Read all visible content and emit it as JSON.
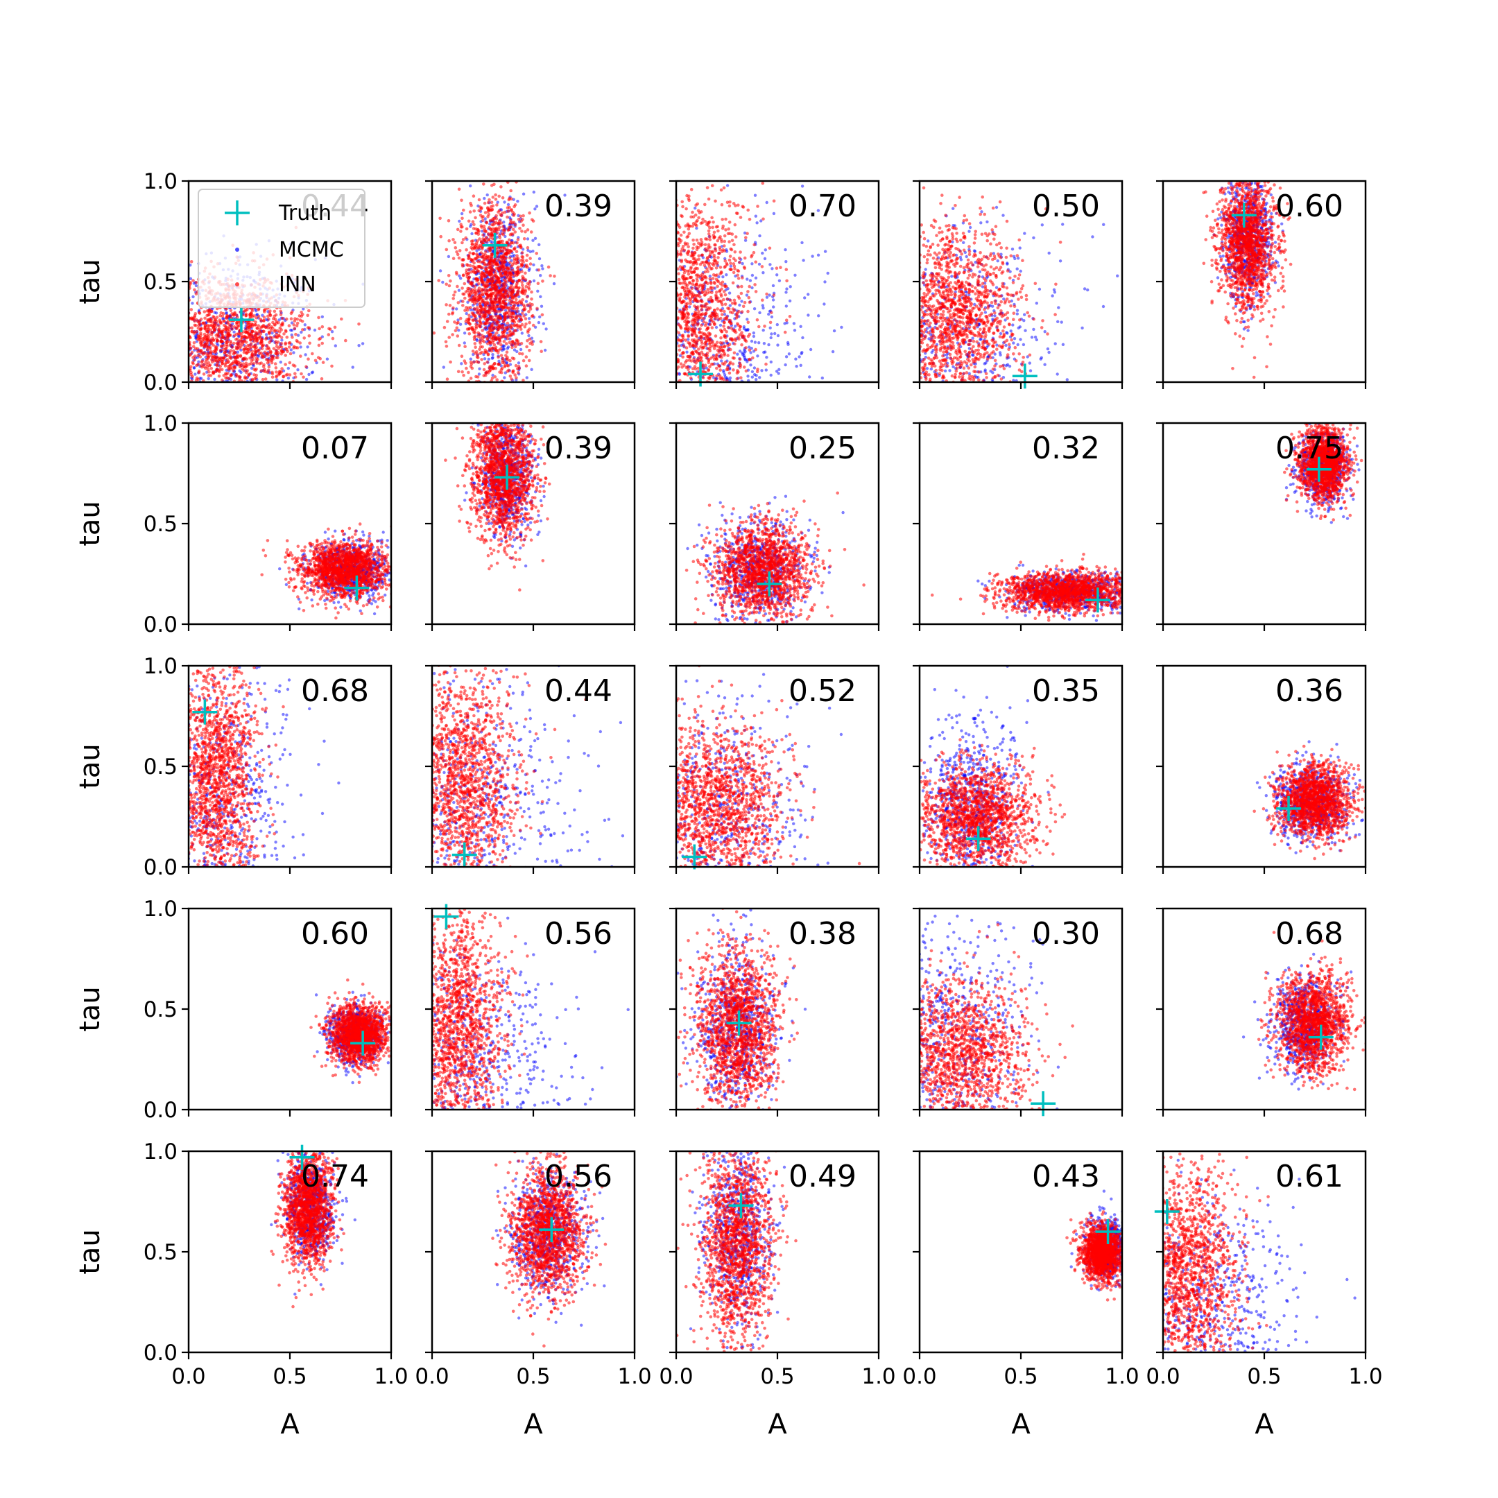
{
  "chart_data": {
    "type": "scatter",
    "layout": "5x5 grid of subplots",
    "xlabel": "A",
    "ylabel": "tau",
    "xlim": [
      0.0,
      1.0
    ],
    "ylim": [
      0.0,
      1.0
    ],
    "xticks": [
      "0.0",
      "0.5",
      "1.0"
    ],
    "yticks": [
      "0.0",
      "0.5",
      "1.0"
    ],
    "grid": false,
    "legend": {
      "placement": "upper-left (first subplot)",
      "entries": [
        {
          "label": "Truth",
          "marker": "+",
          "color": "#00bfbf"
        },
        {
          "label": "MCMC",
          "marker": "dot",
          "color": "#0000ff"
        },
        {
          "label": "INN",
          "marker": "dot",
          "color": "#ff0000"
        }
      ]
    },
    "series_colors": {
      "Truth": "#00bfbf",
      "MCMC": "#0000ff",
      "INN": "#ff0000"
    },
    "panels": [
      {
        "score": "0.44",
        "truth": [
          0.26,
          0.31
        ],
        "inn": {
          "cx": 0.2,
          "cy": 0.22,
          "sx": 0.2,
          "sy": 0.16
        },
        "mcmc": {
          "cx": 0.2,
          "cy": 0.22,
          "sx": 0.22,
          "sy": 0.2
        }
      },
      {
        "score": "0.39",
        "truth": [
          0.31,
          0.68
        ],
        "inn": {
          "cx": 0.31,
          "cy": 0.45,
          "sx": 0.09,
          "sy": 0.22
        },
        "mcmc": {
          "cx": 0.33,
          "cy": 0.45,
          "sx": 0.09,
          "sy": 0.22
        }
      },
      {
        "score": "0.70",
        "truth": [
          0.12,
          0.04
        ],
        "inn": {
          "cx": 0.1,
          "cy": 0.35,
          "sx": 0.14,
          "sy": 0.3
        },
        "mcmc": {
          "cx": 0.2,
          "cy": 0.2,
          "sx": 0.25,
          "sy": 0.3
        }
      },
      {
        "score": "0.50",
        "truth": [
          0.52,
          0.03
        ],
        "inn": {
          "cx": 0.18,
          "cy": 0.32,
          "sx": 0.16,
          "sy": 0.22
        },
        "mcmc": {
          "cx": 0.2,
          "cy": 0.2,
          "sx": 0.25,
          "sy": 0.3
        }
      },
      {
        "score": "0.60",
        "truth": [
          0.4,
          0.83
        ],
        "inn": {
          "cx": 0.42,
          "cy": 0.7,
          "sx": 0.07,
          "sy": 0.17
        },
        "mcmc": {
          "cx": 0.42,
          "cy": 0.72,
          "sx": 0.06,
          "sy": 0.15
        }
      },
      {
        "score": "0.07",
        "truth": [
          0.83,
          0.18
        ],
        "inn": {
          "cx": 0.77,
          "cy": 0.27,
          "sx": 0.11,
          "sy": 0.07
        },
        "mcmc": {
          "cx": 0.8,
          "cy": 0.27,
          "sx": 0.1,
          "sy": 0.07
        }
      },
      {
        "score": "0.39",
        "truth": [
          0.37,
          0.73
        ],
        "inn": {
          "cx": 0.35,
          "cy": 0.75,
          "sx": 0.08,
          "sy": 0.16
        },
        "mcmc": {
          "cx": 0.37,
          "cy": 0.74,
          "sx": 0.07,
          "sy": 0.15
        }
      },
      {
        "score": "0.25",
        "truth": [
          0.46,
          0.2
        ],
        "inn": {
          "cx": 0.42,
          "cy": 0.27,
          "sx": 0.12,
          "sy": 0.12
        },
        "mcmc": {
          "cx": 0.42,
          "cy": 0.27,
          "sx": 0.12,
          "sy": 0.12
        }
      },
      {
        "score": "0.32",
        "truth": [
          0.88,
          0.12
        ],
        "inn": {
          "cx": 0.72,
          "cy": 0.16,
          "sx": 0.16,
          "sy": 0.05
        },
        "mcmc": {
          "cx": 0.75,
          "cy": 0.16,
          "sx": 0.15,
          "sy": 0.05
        }
      },
      {
        "score": "0.75",
        "truth": [
          0.77,
          0.77
        ],
        "inn": {
          "cx": 0.79,
          "cy": 0.8,
          "sx": 0.06,
          "sy": 0.09
        },
        "mcmc": {
          "cx": 0.79,
          "cy": 0.78,
          "sx": 0.06,
          "sy": 0.09
        }
      },
      {
        "score": "0.68",
        "truth": [
          0.08,
          0.77
        ],
        "inn": {
          "cx": 0.14,
          "cy": 0.45,
          "sx": 0.1,
          "sy": 0.3
        },
        "mcmc": {
          "cx": 0.15,
          "cy": 0.3,
          "sx": 0.2,
          "sy": 0.35
        }
      },
      {
        "score": "0.44",
        "truth": [
          0.16,
          0.06
        ],
        "inn": {
          "cx": 0.15,
          "cy": 0.4,
          "sx": 0.14,
          "sy": 0.28
        },
        "mcmc": {
          "cx": 0.2,
          "cy": 0.25,
          "sx": 0.25,
          "sy": 0.35
        }
      },
      {
        "score": "0.52",
        "truth": [
          0.09,
          0.05
        ],
        "inn": {
          "cx": 0.2,
          "cy": 0.3,
          "sx": 0.17,
          "sy": 0.22
        },
        "mcmc": {
          "cx": 0.2,
          "cy": 0.2,
          "sx": 0.25,
          "sy": 0.35
        }
      },
      {
        "score": "0.35",
        "truth": [
          0.29,
          0.14
        ],
        "inn": {
          "cx": 0.28,
          "cy": 0.25,
          "sx": 0.15,
          "sy": 0.13
        },
        "mcmc": {
          "cx": 0.25,
          "cy": 0.3,
          "sx": 0.12,
          "sy": 0.2
        }
      },
      {
        "score": "0.36",
        "truth": [
          0.62,
          0.29
        ],
        "inn": {
          "cx": 0.75,
          "cy": 0.33,
          "sx": 0.09,
          "sy": 0.09
        },
        "mcmc": {
          "cx": 0.73,
          "cy": 0.33,
          "sx": 0.09,
          "sy": 0.09
        }
      },
      {
        "score": "0.60",
        "truth": [
          0.86,
          0.33
        ],
        "inn": {
          "cx": 0.84,
          "cy": 0.37,
          "sx": 0.07,
          "sy": 0.07
        },
        "mcmc": {
          "cx": 0.82,
          "cy": 0.37,
          "sx": 0.07,
          "sy": 0.07
        }
      },
      {
        "score": "0.56",
        "truth": [
          0.07,
          0.96
        ],
        "inn": {
          "cx": 0.12,
          "cy": 0.4,
          "sx": 0.12,
          "sy": 0.3
        },
        "mcmc": {
          "cx": 0.2,
          "cy": 0.2,
          "sx": 0.25,
          "sy": 0.3
        }
      },
      {
        "score": "0.38",
        "truth": [
          0.31,
          0.43
        ],
        "inn": {
          "cx": 0.3,
          "cy": 0.4,
          "sx": 0.1,
          "sy": 0.2
        },
        "mcmc": {
          "cx": 0.3,
          "cy": 0.4,
          "sx": 0.1,
          "sy": 0.2
        }
      },
      {
        "score": "0.30",
        "truth": [
          0.61,
          0.03
        ],
        "inn": {
          "cx": 0.18,
          "cy": 0.25,
          "sx": 0.18,
          "sy": 0.2
        },
        "mcmc": {
          "cx": 0.15,
          "cy": 0.3,
          "sx": 0.2,
          "sy": 0.35
        }
      },
      {
        "score": "0.68",
        "truth": [
          0.78,
          0.36
        ],
        "inn": {
          "cx": 0.74,
          "cy": 0.43,
          "sx": 0.09,
          "sy": 0.12
        },
        "mcmc": {
          "cx": 0.7,
          "cy": 0.42,
          "sx": 0.08,
          "sy": 0.11
        }
      },
      {
        "score": "0.74",
        "truth": [
          0.56,
          0.97
        ],
        "inn": {
          "cx": 0.59,
          "cy": 0.72,
          "sx": 0.06,
          "sy": 0.14
        },
        "mcmc": {
          "cx": 0.6,
          "cy": 0.72,
          "sx": 0.06,
          "sy": 0.13
        }
      },
      {
        "score": "0.56",
        "truth": [
          0.59,
          0.61
        ],
        "inn": {
          "cx": 0.57,
          "cy": 0.6,
          "sx": 0.09,
          "sy": 0.16
        },
        "mcmc": {
          "cx": 0.57,
          "cy": 0.6,
          "sx": 0.09,
          "sy": 0.16
        }
      },
      {
        "score": "0.49",
        "truth": [
          0.32,
          0.73
        ],
        "inn": {
          "cx": 0.3,
          "cy": 0.55,
          "sx": 0.09,
          "sy": 0.25
        },
        "mcmc": {
          "cx": 0.3,
          "cy": 0.6,
          "sx": 0.08,
          "sy": 0.25
        }
      },
      {
        "score": "0.43",
        "truth": [
          0.93,
          0.6
        ],
        "inn": {
          "cx": 0.9,
          "cy": 0.5,
          "sx": 0.05,
          "sy": 0.07
        },
        "mcmc": {
          "cx": 0.93,
          "cy": 0.52,
          "sx": 0.05,
          "sy": 0.08
        }
      },
      {
        "score": "0.61",
        "truth": [
          0.02,
          0.7
        ],
        "inn": {
          "cx": 0.12,
          "cy": 0.4,
          "sx": 0.13,
          "sy": 0.3
        },
        "mcmc": {
          "cx": 0.2,
          "cy": 0.2,
          "sx": 0.25,
          "sy": 0.3
        }
      }
    ]
  }
}
